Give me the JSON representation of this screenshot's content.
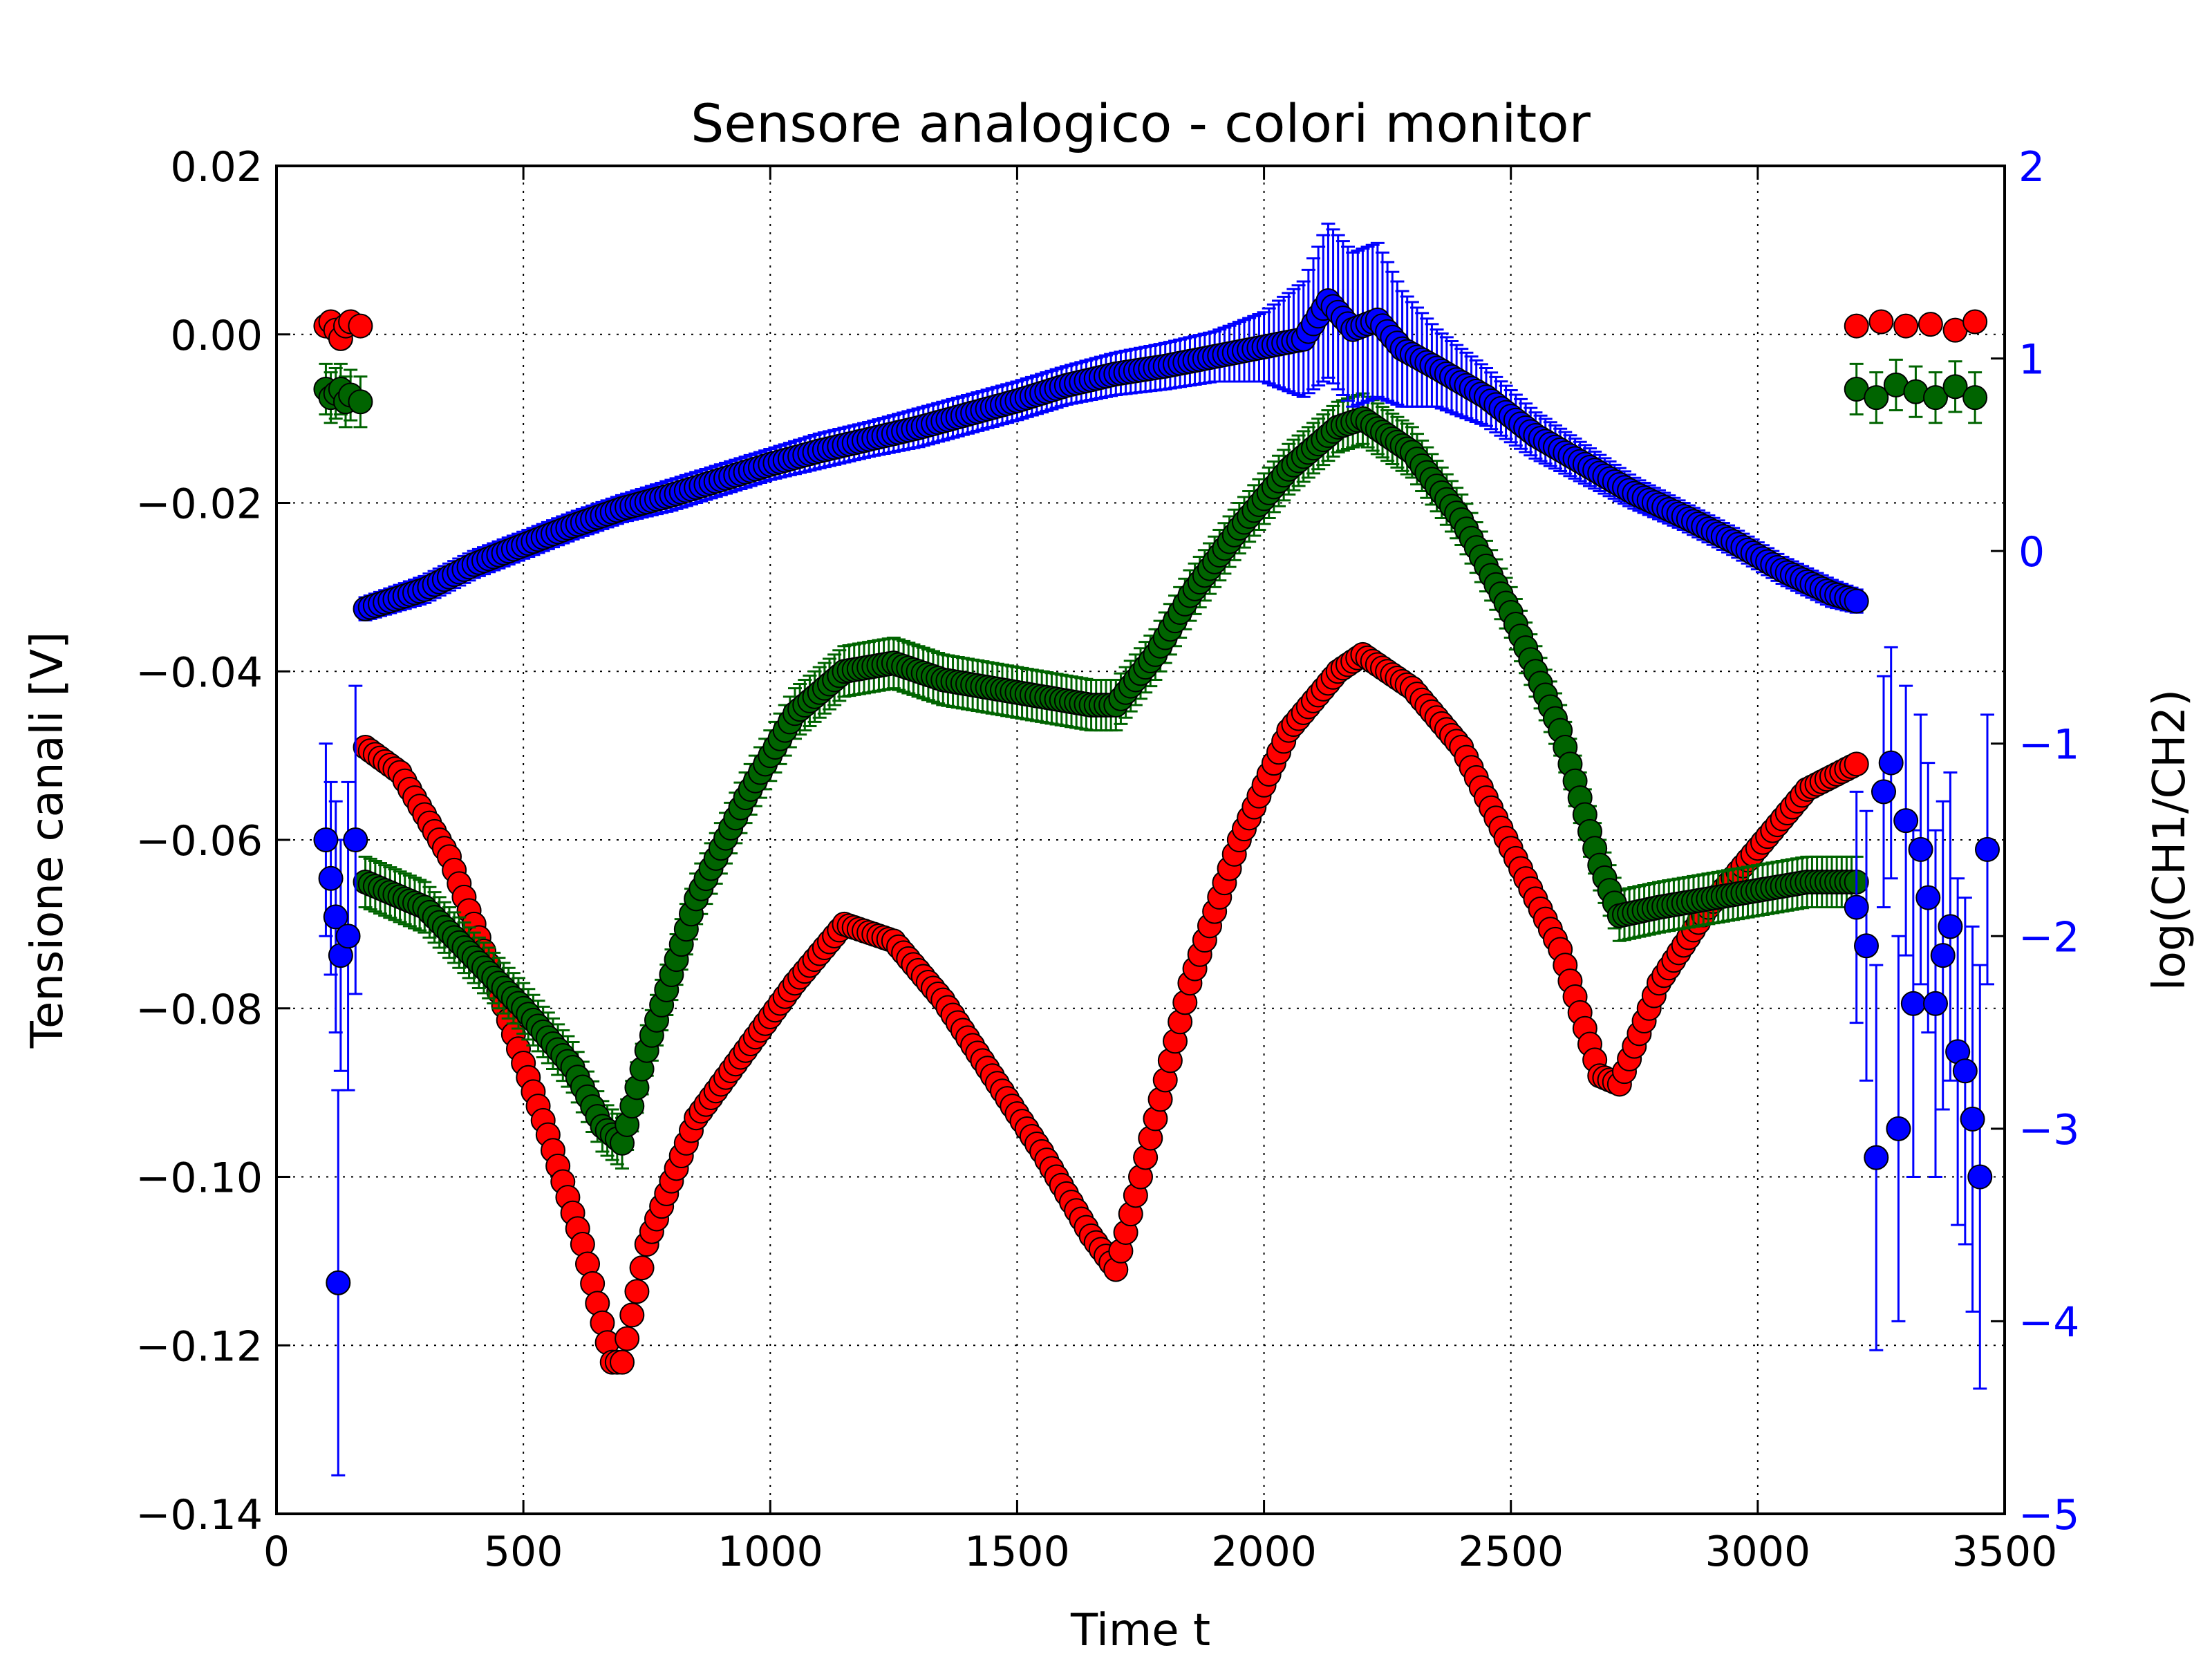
{
  "chart_data": {
    "type": "scatter",
    "title": "Sensore analogico - colori monitor",
    "xlabel": "Time t",
    "ylabel": "Tensione canali [V]",
    "ylabel_right": "log(CH1/CH2)",
    "xlim": [
      0,
      3500
    ],
    "ylim": [
      -0.14,
      0.02
    ],
    "ylim_right": [
      -5,
      2
    ],
    "x_ticks": [
      "0",
      "500",
      "1000",
      "1500",
      "2000",
      "2500",
      "3000",
      "3500"
    ],
    "y_ticks": [
      "0.02",
      "0.00",
      "−0.02",
      "−0.04",
      "−0.06",
      "−0.08",
      "−0.10",
      "−0.12",
      "−0.14"
    ],
    "y_ticks_right": [
      "2",
      "1",
      "0",
      "−1",
      "−2",
      "−3",
      "−4",
      "−5"
    ],
    "grid": true,
    "right_axis_color": "#0000ff",
    "series": [
      {
        "color": "#ff0000",
        "axis": "left",
        "error": 0.001,
        "points": [
          [
            100,
            0.001
          ],
          [
            110,
            0.0015
          ],
          [
            120,
            0.0005
          ],
          [
            130,
            -0.0005
          ],
          [
            140,
            0.001
          ],
          [
            150,
            0.0015
          ],
          [
            170,
            0.001
          ],
          [
            3200,
            0.001
          ],
          [
            3250,
            0.0015
          ],
          [
            3300,
            0.001
          ],
          [
            3350,
            0.0012
          ],
          [
            3400,
            0.0005
          ],
          [
            3440,
            0.0015
          ]
        ],
        "curve": [
          [
            180,
            -0.049
          ],
          [
            250,
            -0.052
          ],
          [
            350,
            -0.062
          ],
          [
            450,
            -0.078
          ],
          [
            550,
            -0.095
          ],
          [
            620,
            -0.108
          ],
          [
            680,
            -0.122
          ],
          [
            700,
            -0.122
          ],
          [
            750,
            -0.108
          ],
          [
            850,
            -0.093
          ],
          [
            950,
            -0.085
          ],
          [
            1050,
            -0.077
          ],
          [
            1150,
            -0.07
          ],
          [
            1250,
            -0.072
          ],
          [
            1350,
            -0.079
          ],
          [
            1450,
            -0.088
          ],
          [
            1550,
            -0.097
          ],
          [
            1650,
            -0.107
          ],
          [
            1700,
            -0.111
          ],
          [
            1750,
            -0.1
          ],
          [
            1850,
            -0.077
          ],
          [
            1950,
            -0.06
          ],
          [
            2050,
            -0.047
          ],
          [
            2150,
            -0.04
          ],
          [
            2200,
            -0.038
          ],
          [
            2300,
            -0.042
          ],
          [
            2400,
            -0.049
          ],
          [
            2500,
            -0.061
          ],
          [
            2600,
            -0.073
          ],
          [
            2680,
            -0.088
          ],
          [
            2720,
            -0.089
          ],
          [
            2800,
            -0.077
          ],
          [
            2900,
            -0.068
          ],
          [
            3000,
            -0.061
          ],
          [
            3100,
            -0.054
          ],
          [
            3200,
            -0.051
          ]
        ]
      },
      {
        "color": "#006400",
        "axis": "left",
        "error": 0.003,
        "points": [
          [
            100,
            -0.0065
          ],
          [
            110,
            -0.0075
          ],
          [
            120,
            -0.007
          ],
          [
            130,
            -0.0065
          ],
          [
            140,
            -0.008
          ],
          [
            150,
            -0.0072
          ],
          [
            170,
            -0.008
          ],
          [
            3200,
            -0.0065
          ],
          [
            3240,
            -0.0075
          ],
          [
            3280,
            -0.006
          ],
          [
            3320,
            -0.0068
          ],
          [
            3360,
            -0.0075
          ],
          [
            3400,
            -0.0062
          ],
          [
            3440,
            -0.0075
          ]
        ],
        "curve": [
          [
            180,
            -0.065
          ],
          [
            300,
            -0.068
          ],
          [
            400,
            -0.074
          ],
          [
            500,
            -0.08
          ],
          [
            600,
            -0.087
          ],
          [
            660,
            -0.094
          ],
          [
            700,
            -0.096
          ],
          [
            750,
            -0.085
          ],
          [
            850,
            -0.067
          ],
          [
            950,
            -0.055
          ],
          [
            1050,
            -0.045
          ],
          [
            1150,
            -0.04
          ],
          [
            1250,
            -0.039
          ],
          [
            1350,
            -0.041
          ],
          [
            1450,
            -0.042
          ],
          [
            1550,
            -0.043
          ],
          [
            1650,
            -0.044
          ],
          [
            1700,
            -0.044
          ],
          [
            1780,
            -0.038
          ],
          [
            1850,
            -0.031
          ],
          [
            1950,
            -0.023
          ],
          [
            2050,
            -0.016
          ],
          [
            2150,
            -0.011
          ],
          [
            2200,
            -0.01
          ],
          [
            2300,
            -0.014
          ],
          [
            2400,
            -0.022
          ],
          [
            2500,
            -0.033
          ],
          [
            2600,
            -0.047
          ],
          [
            2680,
            -0.063
          ],
          [
            2720,
            -0.069
          ],
          [
            2800,
            -0.068
          ],
          [
            2900,
            -0.067
          ],
          [
            3000,
            -0.066
          ],
          [
            3100,
            -0.065
          ],
          [
            3200,
            -0.065
          ]
        ]
      },
      {
        "color": "#0000ff",
        "axis": "right",
        "points": [
          [
            100,
            -1.5,
            0.5
          ],
          [
            110,
            -1.7,
            0.5
          ],
          [
            120,
            -1.9,
            0.6
          ],
          [
            130,
            -2.1,
            0.6
          ],
          [
            125,
            -3.8,
            1.0
          ],
          [
            145,
            -2.0,
            0.8
          ],
          [
            160,
            -1.5,
            0.8
          ],
          [
            3200,
            -1.85,
            0.6
          ],
          [
            3220,
            -2.05,
            0.7
          ],
          [
            3240,
            -3.15,
            1.0
          ],
          [
            3255,
            -1.25,
            0.6
          ],
          [
            3270,
            -1.1,
            0.6
          ],
          [
            3285,
            -3.0,
            1.0
          ],
          [
            3300,
            -1.4,
            0.7
          ],
          [
            3315,
            -2.35,
            0.9
          ],
          [
            3330,
            -1.55,
            0.7
          ],
          [
            3345,
            -1.8,
            0.7
          ],
          [
            3360,
            -2.35,
            0.9
          ],
          [
            3375,
            -2.1,
            0.8
          ],
          [
            3390,
            -1.95,
            0.8
          ],
          [
            3405,
            -2.6,
            0.9
          ],
          [
            3420,
            -2.7,
            0.9
          ],
          [
            3435,
            -2.95,
            1.0
          ],
          [
            3450,
            -3.25,
            1.1
          ],
          [
            3465,
            -1.55,
            0.7
          ]
        ],
        "curve": [
          [
            180,
            -0.3,
            0.06
          ],
          [
            300,
            -0.2,
            0.07
          ],
          [
            400,
            -0.07,
            0.07
          ],
          [
            500,
            0.03,
            0.07
          ],
          [
            600,
            0.13,
            0.07
          ],
          [
            700,
            0.22,
            0.07
          ],
          [
            800,
            0.29,
            0.08
          ],
          [
            900,
            0.37,
            0.08
          ],
          [
            1000,
            0.45,
            0.08
          ],
          [
            1100,
            0.52,
            0.09
          ],
          [
            1200,
            0.58,
            0.09
          ],
          [
            1300,
            0.64,
            0.1
          ],
          [
            1400,
            0.71,
            0.1
          ],
          [
            1500,
            0.78,
            0.1
          ],
          [
            1600,
            0.86,
            0.1
          ],
          [
            1700,
            0.92,
            0.11
          ],
          [
            1800,
            0.96,
            0.12
          ],
          [
            1900,
            1.01,
            0.13
          ],
          [
            2000,
            1.06,
            0.18
          ],
          [
            2080,
            1.1,
            0.3
          ],
          [
            2130,
            1.3,
            0.4
          ],
          [
            2180,
            1.15,
            0.4
          ],
          [
            2230,
            1.2,
            0.4
          ],
          [
            2280,
            1.05,
            0.3
          ],
          [
            2350,
            0.95,
            0.2
          ],
          [
            2450,
            0.8,
            0.15
          ],
          [
            2550,
            0.6,
            0.12
          ],
          [
            2650,
            0.45,
            0.1
          ],
          [
            2750,
            0.3,
            0.08
          ],
          [
            2850,
            0.18,
            0.07
          ],
          [
            2950,
            0.05,
            0.07
          ],
          [
            3050,
            -0.1,
            0.07
          ],
          [
            3150,
            -0.22,
            0.07
          ],
          [
            3200,
            -0.26,
            0.06
          ]
        ]
      }
    ]
  }
}
